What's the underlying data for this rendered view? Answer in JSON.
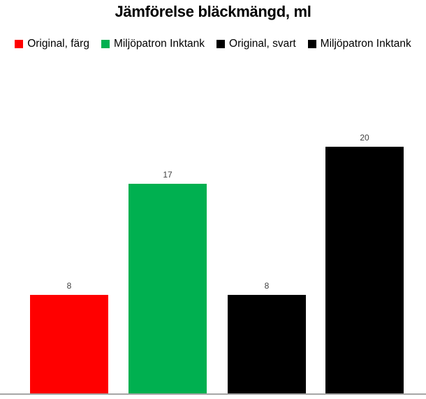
{
  "chart_data": {
    "type": "bar",
    "title": "Jämförelse bläckmängd, ml",
    "unit": "ml",
    "series": [
      {
        "name": "Original, färg",
        "value": 8,
        "color": "#ff0000"
      },
      {
        "name": "Miljöpatron Inktank",
        "value": 17,
        "color": "#00b050"
      },
      {
        "name": "Original, svart",
        "value": 8,
        "color": "#000000"
      },
      {
        "name": "Miljöpatron Inktank",
        "value": 20,
        "color": "#000000"
      }
    ],
    "value_labels": [
      "8",
      "17",
      "8",
      "20"
    ],
    "legend_position": "top",
    "gridlines": false,
    "y_axis_visible": false,
    "x_axis_line_color": "#a6a6a6",
    "value_label_color": "#404040"
  }
}
